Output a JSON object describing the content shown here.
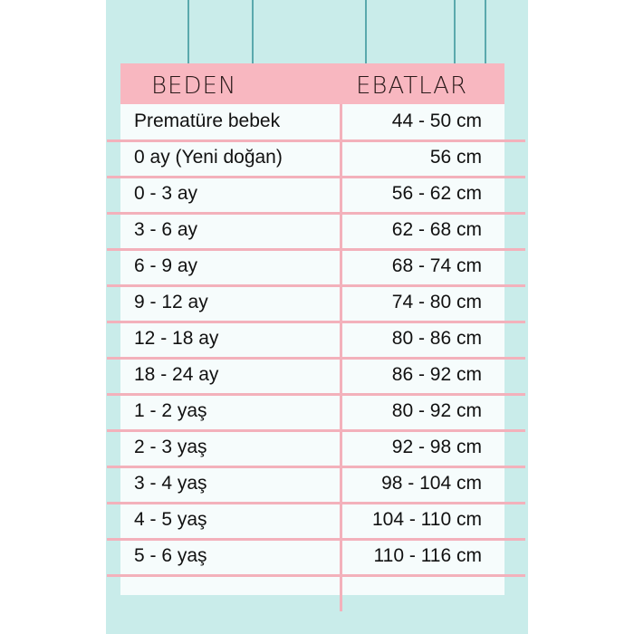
{
  "header": {
    "size": "BEDEN",
    "measurements": "EBATLAR"
  },
  "rows": [
    {
      "size": "Prematüre bebek",
      "measurement": "44 - 50 cm"
    },
    {
      "size": "0 ay (Yeni doğan)",
      "measurement": "56 cm"
    },
    {
      "size": "0 - 3 ay",
      "measurement": "56 - 62 cm"
    },
    {
      "size": "3 - 6 ay",
      "measurement": "62 - 68 cm"
    },
    {
      "size": "6 - 9 ay",
      "measurement": "68 - 74 cm"
    },
    {
      "size": "9 - 12 ay",
      "measurement": "74 - 80 cm"
    },
    {
      "size": "12 - 18 ay",
      "measurement": "80 - 86 cm"
    },
    {
      "size": "18 - 24 ay",
      "measurement": "86 - 92 cm"
    },
    {
      "size": "1 - 2 yaş",
      "measurement": "80 - 92 cm"
    },
    {
      "size": "2 - 3 yaş",
      "measurement": "92 - 98 cm"
    },
    {
      "size": "3 - 4 yaş",
      "measurement": "98 - 104 cm"
    },
    {
      "size": "4 - 5 yaş",
      "measurement": "104 - 110 cm"
    },
    {
      "size": "5 - 6 yaş",
      "measurement": "110 - 116 cm"
    }
  ],
  "colors": {
    "background": "#c9ecea",
    "header": "#f8b7c0",
    "lines": "#f3b1bb"
  }
}
